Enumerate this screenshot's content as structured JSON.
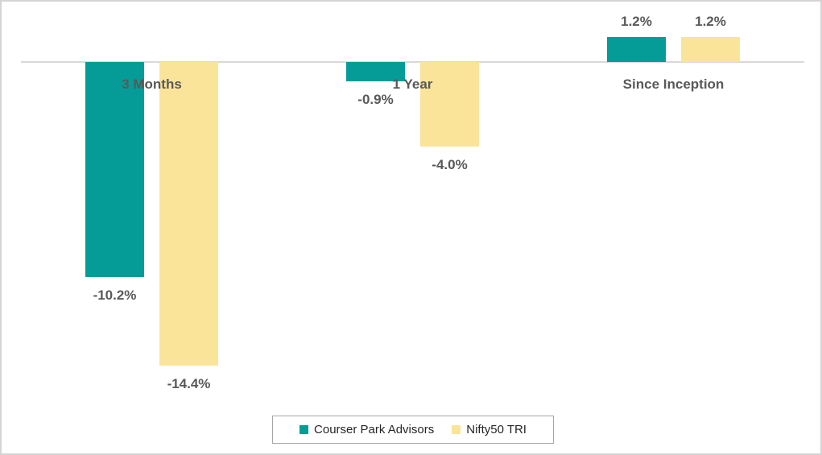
{
  "chart_data": {
    "type": "bar",
    "title": "",
    "xlabel": "",
    "ylabel": "",
    "categories": [
      "3 Months",
      "1 Year",
      "Since Inception"
    ],
    "series": [
      {
        "name": "Courser Park Advisors",
        "color": "#059c98",
        "values": [
          -10.2,
          -0.9,
          1.2
        ],
        "labels": [
          "-10.2%",
          "-0.9%",
          "1.2%"
        ]
      },
      {
        "name": "Nifty50 TRI",
        "color": "#fae49a",
        "values": [
          -14.4,
          -4.0,
          1.2
        ],
        "labels": [
          "-14.4%",
          "-4.0%",
          "1.2%"
        ]
      }
    ],
    "ylim": [
      -16,
      3
    ],
    "grid": false,
    "legend_position": "bottom",
    "axis_color": "#d9d9d9",
    "label_color": "#595959"
  },
  "legend": {
    "items": [
      {
        "label": "Courser Park Advisors",
        "color": "#059c98"
      },
      {
        "label": "Nifty50 TRI",
        "color": "#fae49a"
      }
    ],
    "border_color": "#a6a6a6",
    "text_color": "#262626"
  }
}
